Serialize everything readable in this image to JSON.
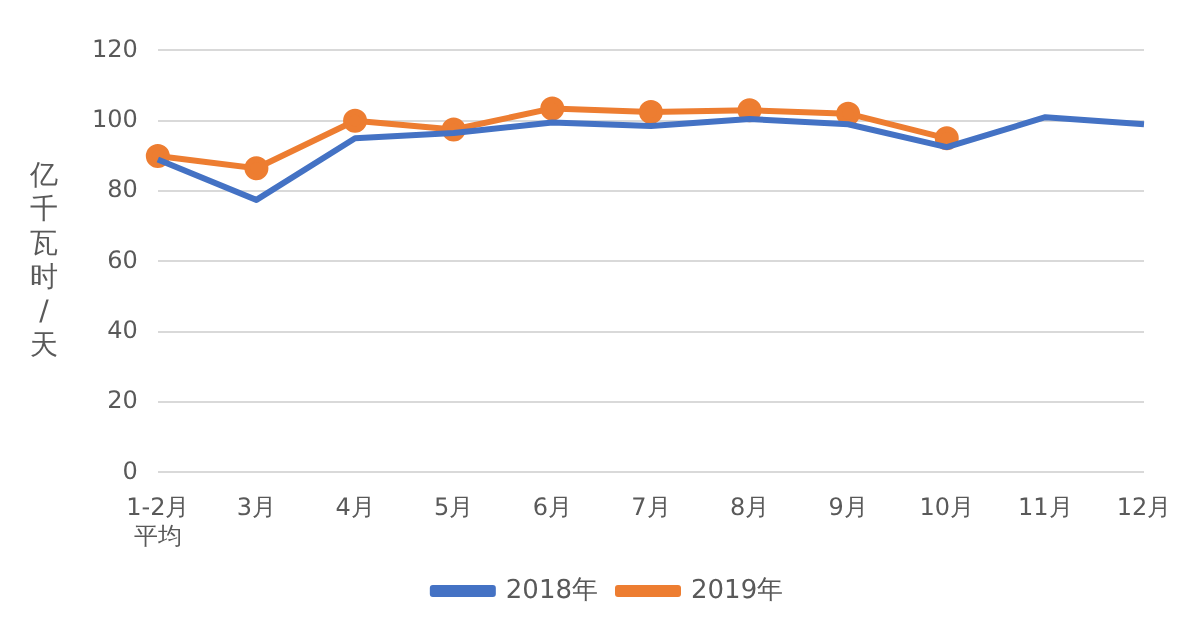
{
  "chart_data": {
    "type": "line",
    "ylabel": "亿千瓦时/天",
    "categories": [
      "1-2月平均",
      "3月",
      "4月",
      "5月",
      "6月",
      "7月",
      "8月",
      "9月",
      "10月",
      "11月",
      "12月"
    ],
    "series": [
      {
        "name": "2018年",
        "color": "#4472c4",
        "marker": "none",
        "values": [
          89,
          77.5,
          95,
          96.5,
          99.5,
          98.5,
          100.5,
          99,
          92.5,
          101,
          99
        ]
      },
      {
        "name": "2019年",
        "color": "#ed7d31",
        "marker": "circle",
        "values": [
          90,
          86.5,
          100,
          97.5,
          103.5,
          102.5,
          103,
          102,
          95,
          null,
          null
        ]
      }
    ],
    "ylim": [
      0,
      120
    ],
    "yticks": [
      0,
      20,
      40,
      60,
      80,
      100,
      120
    ],
    "grid": "y",
    "legend": "bottom"
  }
}
